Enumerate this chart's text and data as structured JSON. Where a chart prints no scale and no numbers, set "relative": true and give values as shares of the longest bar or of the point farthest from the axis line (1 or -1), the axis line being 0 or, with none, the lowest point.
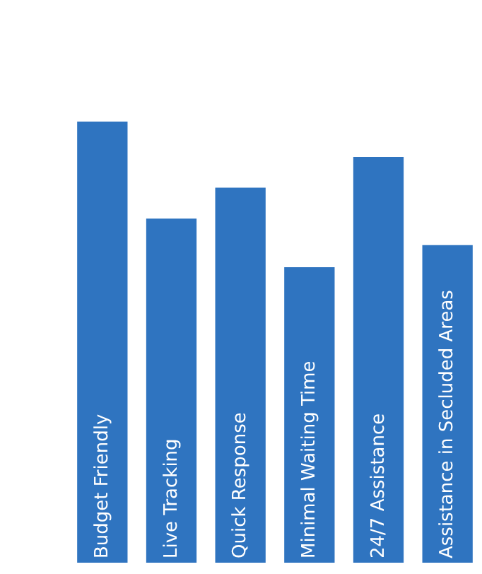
{
  "chart_data": {
    "type": "bar",
    "relative": true,
    "categories": [
      "Budget Friendly",
      "Live Tracking",
      "Quick Response",
      "Minimal Waiting Time",
      "24/7 Assistance",
      "Assistance in Secluded Areas"
    ],
    "values": [
      1,
      0.78,
      0.85,
      0.67,
      0.92,
      0.72
    ],
    "color": "#2f74c0"
  }
}
